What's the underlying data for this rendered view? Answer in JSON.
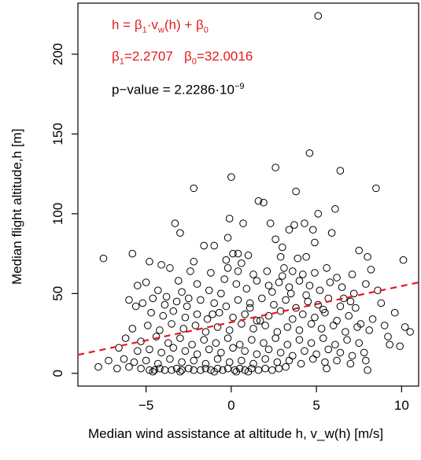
{
  "chart_data": {
    "type": "scatter",
    "xlabel": "Median wind assistance at altitude h, v_w(h) [m/s]",
    "ylabel": "Median flight altitude,h [m]",
    "xlim": [
      -9,
      11
    ],
    "ylim": [
      -8,
      232
    ],
    "xticks": [
      -5,
      0,
      5,
      10
    ],
    "yticks": [
      0,
      50,
      100,
      150,
      200
    ],
    "grid": false,
    "annotations": {
      "equation": [
        "h = β",
        "1",
        "·v",
        "w",
        "(h) + β",
        "0"
      ],
      "params": [
        "β",
        "1",
        "=2.2707   β",
        "0",
        "=32.0016"
      ],
      "pvalue": [
        "p−value = 2.2286·10",
        "−9"
      ],
      "color_red": "#e8191b",
      "color_black": "#000000"
    },
    "regression": {
      "slope": 2.2707,
      "intercept": 32.0016,
      "color": "#e8191b",
      "style": "dashed"
    },
    "series": [
      {
        "points": [
          [
            5.1,
            224
          ],
          [
            4.6,
            138
          ],
          [
            2.6,
            129
          ],
          [
            6.4,
            127
          ],
          [
            0.0,
            123
          ],
          [
            8.5,
            116
          ],
          [
            -2.2,
            116
          ],
          [
            3.8,
            114
          ],
          [
            1.6,
            108
          ],
          [
            1.9,
            107
          ],
          [
            6.1,
            103
          ],
          [
            5.1,
            100
          ],
          [
            -0.1,
            97
          ],
          [
            0.7,
            94
          ],
          [
            4.3,
            94
          ],
          [
            2.3,
            94
          ],
          [
            -3.3,
            94
          ],
          [
            3.7,
            93
          ],
          [
            -3.0,
            88
          ],
          [
            4.8,
            90
          ],
          [
            5.9,
            88
          ],
          [
            -0.2,
            85
          ],
          [
            3.4,
            90
          ],
          [
            -1.0,
            80
          ],
          [
            -1.6,
            80
          ],
          [
            0.1,
            75
          ],
          [
            0.4,
            75
          ],
          [
            1.0,
            74
          ],
          [
            -7.5,
            72
          ],
          [
            -5.8,
            75
          ],
          [
            3.9,
            72
          ],
          [
            8.0,
            73
          ],
          [
            2.9,
            73
          ],
          [
            4.4,
            73
          ],
          [
            7.5,
            77
          ],
          [
            10.1,
            71
          ],
          [
            -2.2,
            70
          ],
          [
            -4.8,
            70
          ],
          [
            -4.1,
            68
          ],
          [
            -3.6,
            66
          ],
          [
            -2.4,
            64
          ],
          [
            -1.2,
            63
          ],
          [
            -0.2,
            66
          ],
          [
            0.4,
            64
          ],
          [
            1.3,
            62
          ],
          [
            2.1,
            64
          ],
          [
            3.1,
            66
          ],
          [
            3.6,
            64
          ],
          [
            4.2,
            62
          ],
          [
            4.9,
            63
          ],
          [
            5.6,
            66
          ],
          [
            6.2,
            60
          ],
          [
            7.1,
            62
          ],
          [
            8.2,
            65
          ],
          [
            -5.5,
            55
          ],
          [
            -5.0,
            57
          ],
          [
            -4.3,
            52
          ],
          [
            -3.8,
            48
          ],
          [
            -2.9,
            51
          ],
          [
            -2.0,
            56
          ],
          [
            -1.3,
            52
          ],
          [
            -0.6,
            50
          ],
          [
            0.3,
            56
          ],
          [
            0.9,
            53
          ],
          [
            1.5,
            58
          ],
          [
            2.2,
            55
          ],
          [
            2.8,
            57
          ],
          [
            3.4,
            54
          ],
          [
            4.0,
            58
          ],
          [
            4.6,
            55
          ],
          [
            5.2,
            52
          ],
          [
            5.8,
            57
          ],
          [
            6.5,
            54
          ],
          [
            7.2,
            50
          ],
          [
            7.9,
            56
          ],
          [
            8.6,
            52
          ],
          [
            -5.2,
            44
          ],
          [
            -4.6,
            47
          ],
          [
            -3.9,
            43
          ],
          [
            -3.2,
            45
          ],
          [
            -2.6,
            42
          ],
          [
            -1.8,
            46
          ],
          [
            -1.0,
            44
          ],
          [
            -0.3,
            42
          ],
          [
            0.4,
            46
          ],
          [
            1.1,
            44
          ],
          [
            1.8,
            47
          ],
          [
            2.5,
            43
          ],
          [
            3.2,
            46
          ],
          [
            3.8,
            41
          ],
          [
            4.5,
            45
          ],
          [
            5.1,
            43
          ],
          [
            5.7,
            47
          ],
          [
            6.4,
            42
          ],
          [
            7.0,
            45
          ],
          [
            -4.7,
            38
          ],
          [
            -4.0,
            36
          ],
          [
            -3.4,
            39
          ],
          [
            -2.7,
            35
          ],
          [
            -2.0,
            37
          ],
          [
            -1.4,
            34
          ],
          [
            -0.7,
            38
          ],
          [
            0.1,
            35
          ],
          [
            0.8,
            37
          ],
          [
            1.5,
            33
          ],
          [
            2.2,
            36
          ],
          [
            2.9,
            39
          ],
          [
            3.6,
            34
          ],
          [
            4.2,
            37
          ],
          [
            4.9,
            35
          ],
          [
            5.5,
            38
          ],
          [
            6.2,
            33
          ],
          [
            6.9,
            36
          ],
          [
            7.6,
            31
          ],
          [
            8.3,
            34
          ],
          [
            -5.8,
            28
          ],
          [
            -4.9,
            30
          ],
          [
            -4.2,
            27
          ],
          [
            -3.5,
            31
          ],
          [
            -2.8,
            28
          ],
          [
            -2.1,
            30
          ],
          [
            -1.5,
            26
          ],
          [
            -0.8,
            29
          ],
          [
            -0.1,
            27
          ],
          [
            0.6,
            31
          ],
          [
            1.3,
            28
          ],
          [
            2.0,
            30
          ],
          [
            2.7,
            26
          ],
          [
            3.3,
            29
          ],
          [
            4.0,
            27
          ],
          [
            4.7,
            31
          ],
          [
            5.3,
            28
          ],
          [
            6.0,
            30
          ],
          [
            6.7,
            26
          ],
          [
            7.4,
            29
          ],
          [
            8.1,
            27
          ],
          [
            9.0,
            30
          ],
          [
            10.2,
            29
          ],
          [
            10.5,
            26
          ],
          [
            -6.2,
            22
          ],
          [
            -5.3,
            20
          ],
          [
            -4.4,
            23
          ],
          [
            -3.7,
            19
          ],
          [
            -3.0,
            22
          ],
          [
            -2.3,
            18
          ],
          [
            -1.6,
            21
          ],
          [
            -0.9,
            19
          ],
          [
            -0.2,
            22
          ],
          [
            0.5,
            18
          ],
          [
            1.2,
            21
          ],
          [
            1.9,
            19
          ],
          [
            2.6,
            22
          ],
          [
            3.3,
            18
          ],
          [
            4.0,
            21
          ],
          [
            4.7,
            19
          ],
          [
            5.4,
            22
          ],
          [
            6.1,
            18
          ],
          [
            6.8,
            21
          ],
          [
            7.5,
            19
          ],
          [
            9.3,
            18
          ],
          [
            9.9,
            17
          ],
          [
            -6.6,
            16
          ],
          [
            -5.5,
            14
          ],
          [
            -4.8,
            15
          ],
          [
            -4.1,
            13
          ],
          [
            -3.4,
            16
          ],
          [
            -2.7,
            14
          ],
          [
            -2.0,
            12
          ],
          [
            -1.3,
            15
          ],
          [
            -0.6,
            13
          ],
          [
            0.1,
            16
          ],
          [
            0.8,
            14
          ],
          [
            1.5,
            12
          ],
          [
            2.2,
            15
          ],
          [
            2.9,
            13
          ],
          [
            3.6,
            11
          ],
          [
            4.3,
            14
          ],
          [
            5.0,
            12
          ],
          [
            5.7,
            15
          ],
          [
            6.4,
            13
          ],
          [
            7.1,
            11
          ],
          [
            7.8,
            13
          ],
          [
            -7.2,
            8
          ],
          [
            -6.3,
            9
          ],
          [
            -5.7,
            7
          ],
          [
            -5.0,
            8
          ],
          [
            -4.3,
            6
          ],
          [
            -3.6,
            9
          ],
          [
            -2.9,
            7
          ],
          [
            -2.2,
            8
          ],
          [
            -1.5,
            6
          ],
          [
            -0.8,
            9
          ],
          [
            -0.1,
            7
          ],
          [
            0.6,
            8
          ],
          [
            1.3,
            6
          ],
          [
            2.0,
            9
          ],
          [
            2.7,
            7
          ],
          [
            3.4,
            8
          ],
          [
            4.1,
            6
          ],
          [
            4.8,
            9
          ],
          [
            5.5,
            7
          ],
          [
            6.2,
            8
          ],
          [
            7.0,
            6
          ],
          [
            7.9,
            8
          ],
          [
            -7.8,
            4
          ],
          [
            -6.7,
            3
          ],
          [
            -6.0,
            4
          ],
          [
            -5.3,
            3
          ],
          [
            -4.8,
            2
          ],
          [
            -4.5,
            2
          ],
          [
            -4.2,
            3
          ],
          [
            -3.9,
            2
          ],
          [
            -3.5,
            2
          ],
          [
            -3.2,
            3
          ],
          [
            -2.9,
            2
          ],
          [
            -2.5,
            3
          ],
          [
            -2.2,
            2
          ],
          [
            -1.8,
            2
          ],
          [
            -1.5,
            3
          ],
          [
            -1.2,
            2
          ],
          [
            -0.8,
            3
          ],
          [
            -0.5,
            2
          ],
          [
            -0.2,
            3
          ],
          [
            0.2,
            2
          ],
          [
            0.5,
            3
          ],
          [
            0.8,
            2
          ],
          [
            1.2,
            3
          ],
          [
            1.6,
            2
          ],
          [
            2.0,
            3
          ],
          [
            2.4,
            2
          ],
          [
            2.8,
            3
          ],
          [
            3.2,
            4
          ],
          [
            5.6,
            3
          ],
          [
            8.0,
            2
          ],
          [
            -4.6,
            1
          ],
          [
            -3.0,
            1
          ],
          [
            -1.0,
            1
          ],
          [
            0.3,
            1
          ],
          [
            1.0,
            1
          ],
          [
            -6.0,
            46
          ],
          [
            -5.6,
            42
          ],
          [
            -3.1,
            58
          ],
          [
            -2.5,
            47
          ],
          [
            -1.1,
            37
          ],
          [
            0.6,
            69
          ],
          [
            1.1,
            41
          ],
          [
            2.4,
            51
          ],
          [
            3.0,
            61
          ],
          [
            3.5,
            50
          ],
          [
            4.4,
            49
          ],
          [
            5.4,
            40
          ],
          [
            6.6,
            47
          ],
          [
            7.3,
            41
          ],
          [
            8.8,
            44
          ],
          [
            9.6,
            38
          ],
          [
            9.2,
            23
          ],
          [
            -0.4,
            59
          ],
          [
            1.7,
            33
          ],
          [
            4.9,
            82
          ],
          [
            2.6,
            84
          ],
          [
            -0.3,
            71
          ],
          [
            3.0,
            79
          ]
        ]
      }
    ]
  }
}
